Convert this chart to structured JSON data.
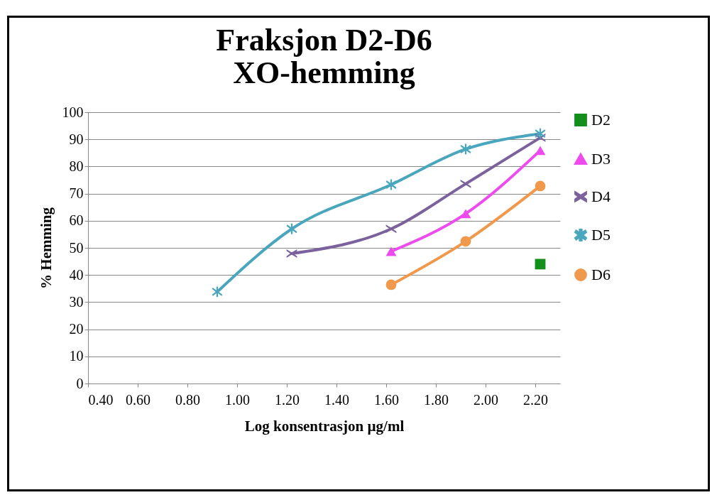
{
  "chart_data": {
    "type": "line",
    "title": "Fraksjon D2-D6\nXO-hemming",
    "xlabel": "Log konsentrasjon µg/ml",
    "ylabel": "% Hemming",
    "xlim": [
      0.4,
      2.3
    ],
    "xticks": [
      {
        "value": 0.4,
        "label": "0.40"
      },
      {
        "value": 0.6,
        "label": "0.60"
      },
      {
        "value": 0.8,
        "label": "0.80"
      },
      {
        "value": 1.0,
        "label": "1.00"
      },
      {
        "value": 1.2,
        "label": "1.20"
      },
      {
        "value": 1.4,
        "label": "1.40"
      },
      {
        "value": 1.6,
        "label": "1.60"
      },
      {
        "value": 1.8,
        "label": "1.80"
      },
      {
        "value": 2.0,
        "label": "2.00"
      },
      {
        "value": 2.2,
        "label": "2.20"
      }
    ],
    "ylim": [
      0,
      100
    ],
    "yticks": [
      0,
      10,
      20,
      30,
      40,
      50,
      60,
      70,
      80,
      90,
      100
    ],
    "grid": "y",
    "legend": "right",
    "series": [
      {
        "name": "D2",
        "color": "#13901b",
        "marker": "square",
        "x": [
          2.22
        ],
        "values": [
          44
        ]
      },
      {
        "name": "D3",
        "color": "#ee4bee",
        "marker": "triangle",
        "x": [
          1.62,
          1.92,
          2.22
        ],
        "values": [
          48.7,
          62.6,
          85.9
        ]
      },
      {
        "name": "D4",
        "color": "#7b629c",
        "marker": "cross",
        "x": [
          1.22,
          1.62,
          1.92,
          2.22
        ],
        "values": [
          47.9,
          57,
          73.6,
          90.6
        ]
      },
      {
        "name": "D5",
        "color": "#4aa6bd",
        "marker": "star",
        "x": [
          0.92,
          1.22,
          1.62,
          1.92,
          2.22
        ],
        "values": [
          33.8,
          57,
          73.3,
          86.4,
          92.1
        ]
      },
      {
        "name": "D6",
        "color": "#f0994d",
        "marker": "circle",
        "x": [
          1.62,
          1.92,
          2.22
        ],
        "values": [
          36.4,
          52.4,
          72.8
        ]
      }
    ]
  }
}
